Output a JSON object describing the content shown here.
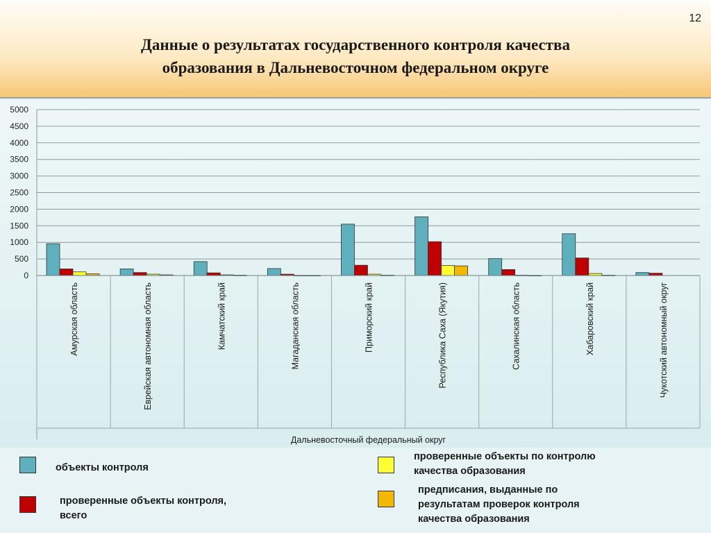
{
  "page_number": "12",
  "title_lines": [
    "Данные о результатах государственного контроля качества",
    "образования в Дальневосточном федеральном округе"
  ],
  "colors": {
    "objects": "#5fb0bd",
    "checked": "#c00000",
    "checked_quality": "#ffff33",
    "prescriptions": "#f5b800"
  },
  "legend": {
    "objects": "объекты контроля",
    "checked": [
      "проверенные объекты контроля,",
      "всего"
    ],
    "checked_quality": [
      "проверенные объекты по контролю",
      "качества образования"
    ],
    "prescriptions": [
      "предписания, выданные по",
      "результатам проверок контроля",
      "качества образования"
    ]
  },
  "chart_data": {
    "type": "bar",
    "title": "",
    "xlabel": "Дальневосточный федеральный округ",
    "ylabel": "",
    "ylim": [
      0,
      5000
    ],
    "yticks": [
      0,
      500,
      1000,
      1500,
      2000,
      2500,
      3000,
      3500,
      4000,
      4500,
      5000
    ],
    "grid": true,
    "categories": [
      "Амурская область",
      "Еврейская автономная область",
      "Камчатский край",
      "Магаданская область",
      "Приморский край",
      "Республика Саха (Якутия)",
      "Сахалинская область",
      "Хабаровский край",
      "Чукотский автономный округ"
    ],
    "series": [
      {
        "name": "объекты контроля",
        "values": [
          960,
          200,
          420,
          210,
          1550,
          1770,
          510,
          1260,
          90
        ]
      },
      {
        "name": "проверенные объекты контроля, всего",
        "values": [
          200,
          90,
          80,
          40,
          310,
          1020,
          180,
          530,
          70
        ]
      },
      {
        "name": "проверенные объекты по контролю качества образования",
        "values": [
          110,
          40,
          20,
          5,
          40,
          300,
          10,
          60,
          0
        ]
      },
      {
        "name": "предписания, выданные по результатам проверок контроля качества образования",
        "values": [
          50,
          20,
          10,
          5,
          10,
          290,
          5,
          10,
          0
        ]
      }
    ]
  }
}
